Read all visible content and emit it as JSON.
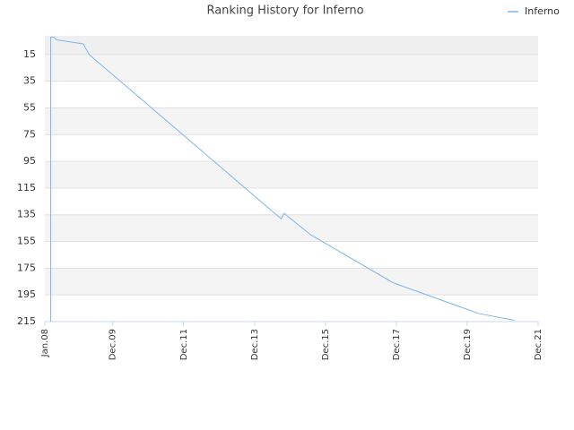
{
  "chart_data": {
    "type": "line",
    "title": "Ranking History for Inferno",
    "x": [
      "2008-03",
      "2008-03",
      "2008-03",
      "2008-04",
      "2008-05",
      "2009-02",
      "2009-04",
      "2014-09",
      "2014-10",
      "2015-07",
      "2017-11",
      "2020-04",
      "2021-04"
    ],
    "series": [
      {
        "name": "Inferno",
        "color": "#7cb5ec",
        "values": [
          215,
          108,
          2,
          2,
          4,
          7,
          15,
          138,
          134,
          150,
          186,
          209,
          214
        ]
      }
    ],
    "xlim": [
      "2008-01",
      "2021-12"
    ],
    "xticks": [
      {
        "value": "2008-01",
        "label": "Jan.08"
      },
      {
        "value": "2009-12",
        "label": "Dec.09"
      },
      {
        "value": "2011-12",
        "label": "Dec.11"
      },
      {
        "value": "2013-12",
        "label": "Dec.13"
      },
      {
        "value": "2015-12",
        "label": "Dec.15"
      },
      {
        "value": "2017-12",
        "label": "Dec.17"
      },
      {
        "value": "2019-12",
        "label": "Dec.19"
      },
      {
        "value": "2021-12",
        "label": "Dec.21"
      }
    ],
    "ylim": [
      1,
      215
    ],
    "yticks": [
      15,
      35,
      55,
      75,
      95,
      115,
      135,
      155,
      175,
      195,
      215
    ],
    "inverted_y": true,
    "grid": true,
    "legend": "top-right"
  }
}
